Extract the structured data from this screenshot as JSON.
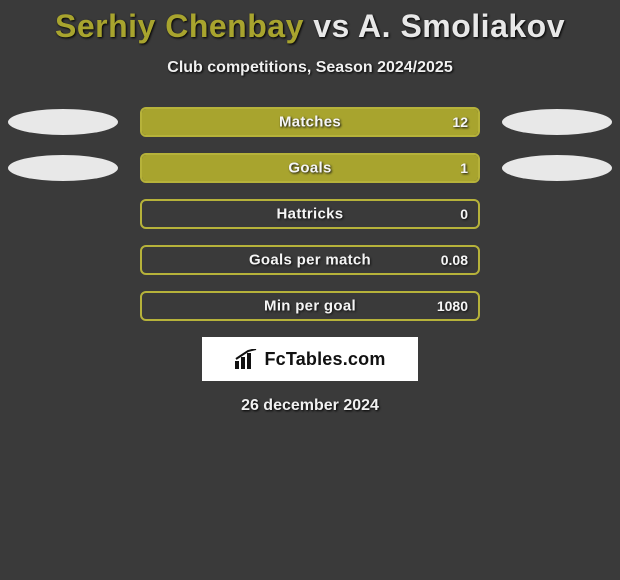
{
  "title": {
    "player1": "Serhiy Chenbay",
    "vs": "vs",
    "player2": "A. Smoliakov",
    "player1_color": "#a8a42e",
    "player2_color": "#e8e8e8"
  },
  "subtitle": "Club competitions, Season 2024/2025",
  "colors": {
    "background": "#3a3a3a",
    "bar_border": "#b6b23a",
    "bar_fill": "#a8a42e",
    "ellipse": "#e8e8e8",
    "text": "#f5f5f5"
  },
  "bar_track_width": 340,
  "stats": [
    {
      "label": "Matches",
      "value_text": "12",
      "left_fill_pct": 0,
      "right_fill_pct": 100,
      "show_left_ellipse": true,
      "show_right_ellipse": true
    },
    {
      "label": "Goals",
      "value_text": "1",
      "left_fill_pct": 0,
      "right_fill_pct": 100,
      "show_left_ellipse": true,
      "show_right_ellipse": true
    },
    {
      "label": "Hattricks",
      "value_text": "0",
      "left_fill_pct": 0,
      "right_fill_pct": 0,
      "show_left_ellipse": false,
      "show_right_ellipse": false
    },
    {
      "label": "Goals per match",
      "value_text": "0.08",
      "left_fill_pct": 0,
      "right_fill_pct": 0,
      "show_left_ellipse": false,
      "show_right_ellipse": false
    },
    {
      "label": "Min per goal",
      "value_text": "1080",
      "left_fill_pct": 0,
      "right_fill_pct": 0,
      "show_left_ellipse": false,
      "show_right_ellipse": false
    }
  ],
  "logo_text": "FcTables.com",
  "date": "26 december 2024"
}
